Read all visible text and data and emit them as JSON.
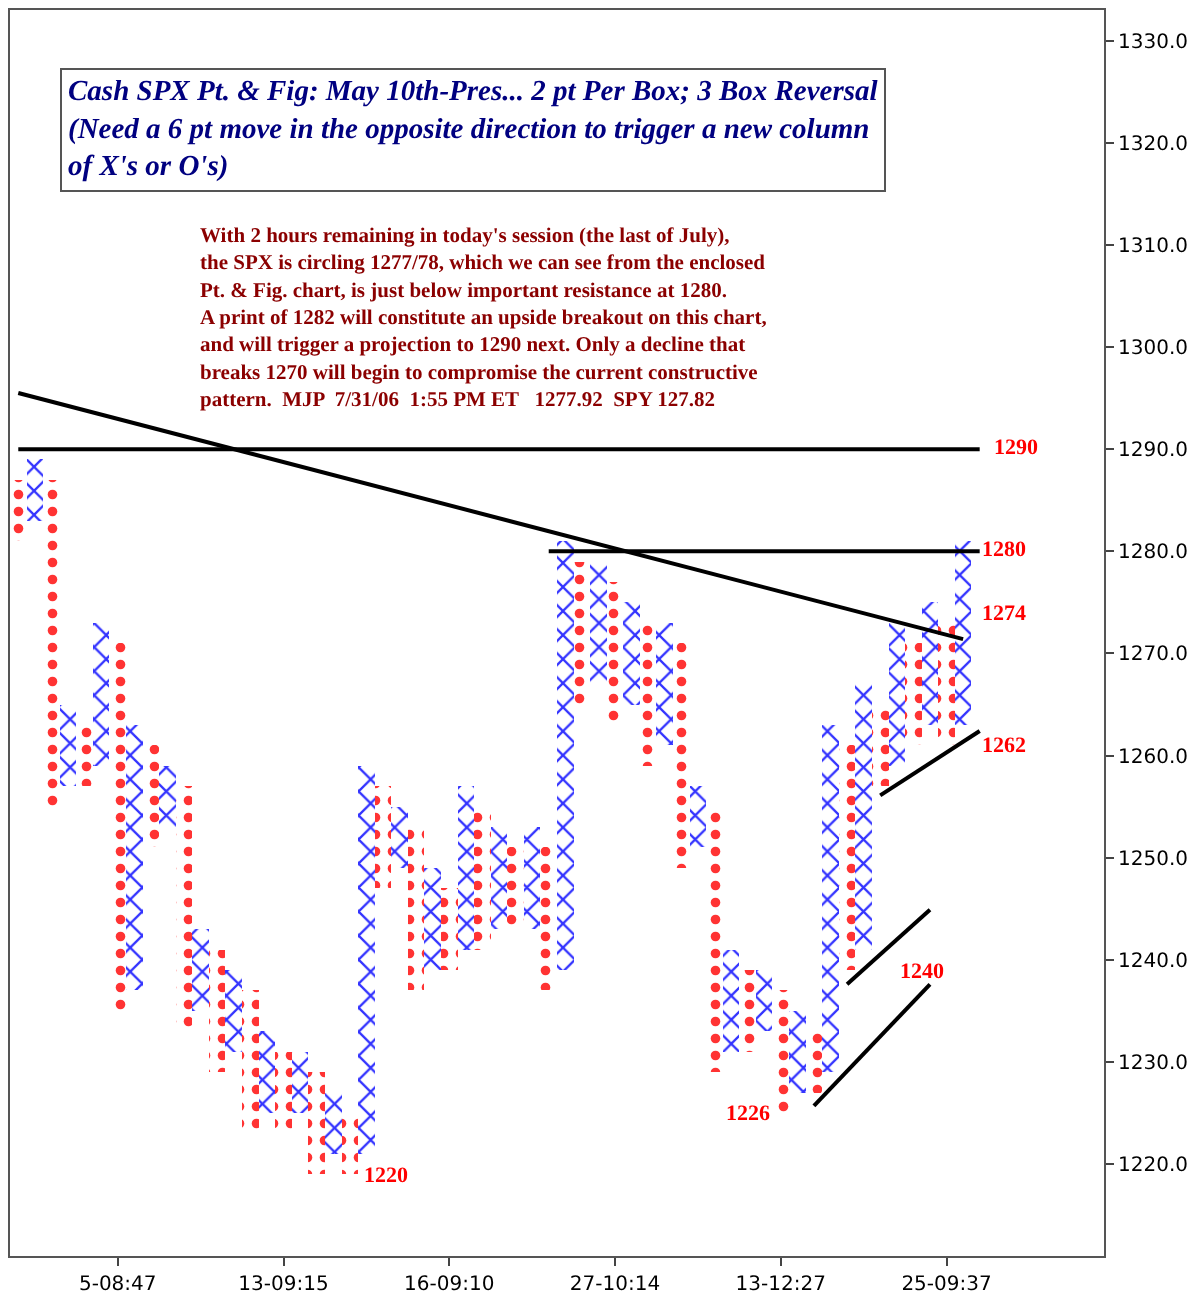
{
  "chart_data": {
    "type": "bar",
    "title": "Cash SPX Pt. & Fig: May 10th-Pres... 2 pt Per Box; 3 Box Reversal\n(Need a 6 pt move in the opposite direction to trigger a new column\nof X's or O's)",
    "subtitle": "With 2 hours remaining in today's session (the last of July),\nthe SPX is circling 1277/78, which we can see from the enclosed\nPt. & Fig. chart, is just below important resistance at 1280.\nA print of 1282 will constitute an upside breakout on this chart,\nand will trigger a projection to 1290 next. Only a decline that\nbreaks 1270 will begin to compromise the current constructive\npattern.  MJP  7/31/06  1:55 PM ET   1277.92  SPY 127.82",
    "categories": [
      null,
      null,
      null,
      null,
      null,
      null,
      "5-08:47",
      null,
      null,
      null,
      null,
      null,
      null,
      null,
      null,
      null,
      "13-09:15",
      null,
      null,
      null,
      null,
      null,
      null,
      null,
      null,
      null,
      "16-09:10",
      null,
      null,
      null,
      null,
      null,
      null,
      null,
      null,
      null,
      "27-10:14",
      null,
      null,
      null,
      null,
      null,
      null,
      null,
      null,
      null,
      "13-12:27",
      null,
      null,
      null,
      null,
      null,
      null,
      null,
      null,
      null,
      "25-09:37",
      null,
      null,
      null,
      null,
      null,
      null,
      null,
      null,
      null
    ],
    "series": [
      {
        "color": "#3333ff",
        "marker": "cross",
        "base": [
          null,
          1283,
          null,
          1257,
          null,
          1259,
          null,
          1237,
          null,
          1253,
          null,
          1235,
          null,
          1231,
          null,
          1225,
          null,
          1225,
          null,
          1221,
          null,
          1221,
          null,
          1249,
          null,
          1239,
          null,
          1241,
          null,
          1243,
          null,
          1243,
          null,
          1239,
          null,
          1267,
          null,
          1265,
          null,
          1261,
          null,
          1251,
          null,
          1231,
          null,
          1233,
          null,
          1227,
          null,
          1229,
          null,
          1241,
          null,
          1259,
          null,
          1263,
          null,
          1263,
          null,
          null,
          null,
          null,
          null,
          null,
          null,
          null
        ],
        "values": [
          null,
          6,
          null,
          8,
          null,
          14,
          null,
          26,
          null,
          6,
          null,
          8,
          null,
          8,
          null,
          8,
          null,
          6,
          null,
          6,
          null,
          38,
          null,
          6,
          null,
          10,
          null,
          16,
          null,
          10,
          null,
          10,
          null,
          42,
          null,
          12,
          null,
          10,
          null,
          12,
          null,
          6,
          null,
          10,
          null,
          6,
          null,
          8,
          null,
          34,
          null,
          26,
          null,
          14,
          null,
          12,
          null,
          18,
          null,
          null,
          null,
          null,
          null,
          null,
          null,
          null
        ]
      },
      {
        "color": "#ff3333",
        "marker": "circle",
        "base": [
          1281,
          null,
          1255,
          null,
          1257,
          null,
          1235,
          null,
          1251,
          null,
          1233,
          null,
          1229,
          null,
          1223,
          null,
          1223,
          null,
          1219,
          null,
          1219,
          null,
          1247,
          null,
          1237,
          null,
          1239,
          null,
          1241,
          null,
          1243,
          null,
          1237,
          null,
          1265,
          null,
          1263,
          null,
          1259,
          null,
          1249,
          null,
          1229,
          null,
          1231,
          null,
          1225,
          null,
          1227,
          null,
          1239,
          null,
          1257,
          null,
          1261,
          null,
          1261,
          null,
          null,
          null,
          null,
          null,
          null,
          null,
          null,
          null
        ],
        "values": [
          6,
          null,
          32,
          null,
          6,
          null,
          36,
          null,
          10,
          null,
          24,
          null,
          12,
          null,
          14,
          null,
          8,
          null,
          10,
          null,
          6,
          null,
          10,
          null,
          16,
          null,
          8,
          null,
          14,
          null,
          8,
          null,
          14,
          null,
          14,
          null,
          14,
          null,
          14,
          null,
          22,
          null,
          26,
          null,
          8,
          null,
          12,
          null,
          6,
          null,
          22,
          null,
          8,
          null,
          10,
          null,
          12,
          null,
          null,
          null,
          null,
          null,
          null,
          null,
          null,
          null
        ]
      },
      {
        "type": "line",
        "color": "#000000",
        "values": [
          1295.5,
          null,
          null,
          null,
          null,
          null,
          null,
          null,
          null,
          null,
          null,
          null,
          null,
          null,
          null,
          null,
          null,
          null,
          null,
          null,
          null,
          null,
          null,
          null,
          null,
          null,
          null,
          null,
          null,
          null,
          null,
          null,
          null,
          null,
          null,
          null,
          null,
          null,
          null,
          null,
          null,
          null,
          null,
          null,
          null,
          null,
          null,
          null,
          null,
          null,
          null,
          null,
          null,
          null,
          null,
          null,
          null,
          1271.4,
          null,
          null,
          null,
          null,
          null,
          null,
          null,
          null
        ]
      },
      {
        "type": "line",
        "color": "#000000",
        "values": [
          1290,
          null,
          null,
          null,
          null,
          null,
          null,
          null,
          null,
          null,
          null,
          null,
          null,
          null,
          null,
          null,
          null,
          null,
          null,
          null,
          null,
          null,
          null,
          null,
          null,
          null,
          null,
          null,
          null,
          null,
          null,
          null,
          null,
          null,
          null,
          null,
          null,
          null,
          null,
          null,
          null,
          null,
          null,
          null,
          null,
          null,
          null,
          null,
          null,
          null,
          null,
          null,
          null,
          null,
          null,
          null,
          null,
          null,
          1290,
          null,
          null,
          null,
          null,
          null,
          null,
          null
        ]
      },
      {
        "type": "line",
        "color": "#000000",
        "values": [
          null,
          null,
          null,
          null,
          null,
          null,
          null,
          null,
          null,
          null,
          null,
          null,
          null,
          null,
          null,
          null,
          null,
          null,
          null,
          null,
          null,
          null,
          null,
          null,
          null,
          null,
          null,
          null,
          null,
          null,
          null,
          null,
          1280,
          null,
          null,
          null,
          null,
          null,
          null,
          null,
          null,
          null,
          null,
          null,
          null,
          null,
          null,
          null,
          null,
          null,
          null,
          null,
          null,
          null,
          null,
          null,
          null,
          null,
          1280,
          null,
          null,
          null,
          null,
          null,
          null,
          null
        ]
      },
      {
        "type": "line",
        "color": "#000000",
        "values": [
          null,
          null,
          null,
          null,
          null,
          null,
          null,
          null,
          null,
          null,
          null,
          null,
          null,
          null,
          null,
          null,
          null,
          null,
          null,
          null,
          null,
          null,
          null,
          null,
          null,
          null,
          null,
          null,
          null,
          null,
          null,
          null,
          null,
          null,
          null,
          null,
          null,
          null,
          null,
          null,
          null,
          null,
          null,
          null,
          null,
          null,
          null,
          null,
          null,
          null,
          null,
          null,
          1256.1,
          null,
          null,
          null,
          null,
          null,
          1262.4,
          null,
          null,
          null,
          null,
          null,
          null,
          null
        ]
      },
      {
        "type": "line",
        "color": "#000000",
        "values": [
          null,
          null,
          null,
          null,
          null,
          null,
          null,
          null,
          null,
          null,
          null,
          null,
          null,
          null,
          null,
          null,
          null,
          null,
          null,
          null,
          null,
          null,
          null,
          null,
          null,
          null,
          null,
          null,
          null,
          null,
          null,
          null,
          null,
          null,
          null,
          null,
          null,
          null,
          null,
          null,
          null,
          null,
          null,
          null,
          null,
          null,
          null,
          null,
          null,
          null,
          1237.6,
          null,
          null,
          null,
          null,
          1244.9,
          null,
          null,
          null,
          null,
          null,
          null,
          null,
          null,
          null,
          null
        ]
      },
      {
        "type": "line",
        "color": "#000000",
        "values": [
          null,
          null,
          null,
          null,
          null,
          null,
          null,
          null,
          null,
          null,
          null,
          null,
          null,
          null,
          null,
          null,
          null,
          null,
          null,
          null,
          null,
          null,
          null,
          null,
          null,
          null,
          null,
          null,
          null,
          null,
          null,
          null,
          null,
          null,
          null,
          null,
          null,
          null,
          null,
          null,
          null,
          null,
          null,
          null,
          null,
          null,
          null,
          null,
          1225.7,
          null,
          null,
          null,
          null,
          null,
          null,
          1237.6,
          null,
          null,
          null,
          null,
          null,
          null,
          null,
          null,
          null,
          null
        ]
      }
    ],
    "annotations": [
      "1290",
      "1280",
      "1274",
      "1262",
      "1240",
      "1226",
      "1220"
    ],
    "ylim": [
      1211,
      1333
    ],
    "yticks": [
      {
        "value": 1220,
        "label": "1220.0"
      },
      {
        "value": 1230,
        "label": "1230.0"
      },
      {
        "value": 1240,
        "label": "1240.0"
      },
      {
        "value": 1250,
        "label": "1250.0"
      },
      {
        "value": 1260,
        "label": "1260.0"
      },
      {
        "value": 1270,
        "label": "1270.0"
      },
      {
        "value": 1280,
        "label": "1280.0"
      },
      {
        "value": 1290,
        "label": "1290.0"
      },
      {
        "value": 1300,
        "label": "1300.0"
      },
      {
        "value": 1310,
        "label": "1310.0"
      },
      {
        "value": 1320,
        "label": "1320.0"
      },
      {
        "value": 1330,
        "label": "1330.0"
      }
    ],
    "grid": false,
    "line_style": "solid"
  }
}
